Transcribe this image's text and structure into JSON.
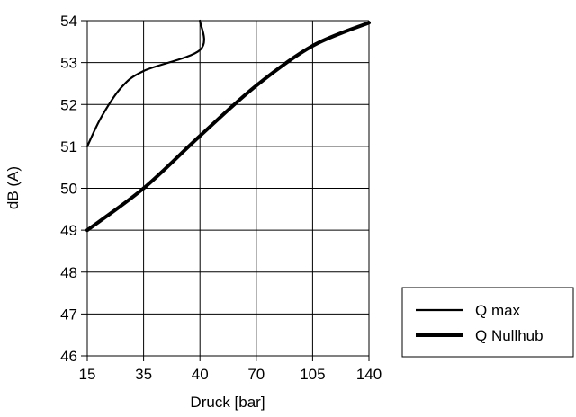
{
  "chart_data": {
    "type": "line",
    "xlabel": "Druck [bar]",
    "ylabel": "dB (A)",
    "x_tick_labels": [
      "15",
      "35",
      "40",
      "70",
      "105",
      "140"
    ],
    "y_ticks": [
      46,
      47,
      48,
      49,
      50,
      51,
      52,
      53,
      54
    ],
    "ylim": [
      46,
      54
    ],
    "grid": true,
    "legend_position": "right",
    "series": [
      {
        "name": "Q max",
        "x": [
          "15",
          "20",
          "27",
          "35",
          "40"
        ],
        "y": [
          51.0,
          51.7,
          52.4,
          52.8,
          53.3
        ],
        "line_weight": "thin"
      },
      {
        "name": "Q Nullhub",
        "x": [
          "15",
          "35",
          "40",
          "70",
          "105",
          "140"
        ],
        "y": [
          49.0,
          50.0,
          51.25,
          52.45,
          53.4,
          53.95
        ],
        "line_weight": "thick"
      }
    ],
    "qmax_end": {
      "x": "40",
      "y": 54.0
    }
  }
}
